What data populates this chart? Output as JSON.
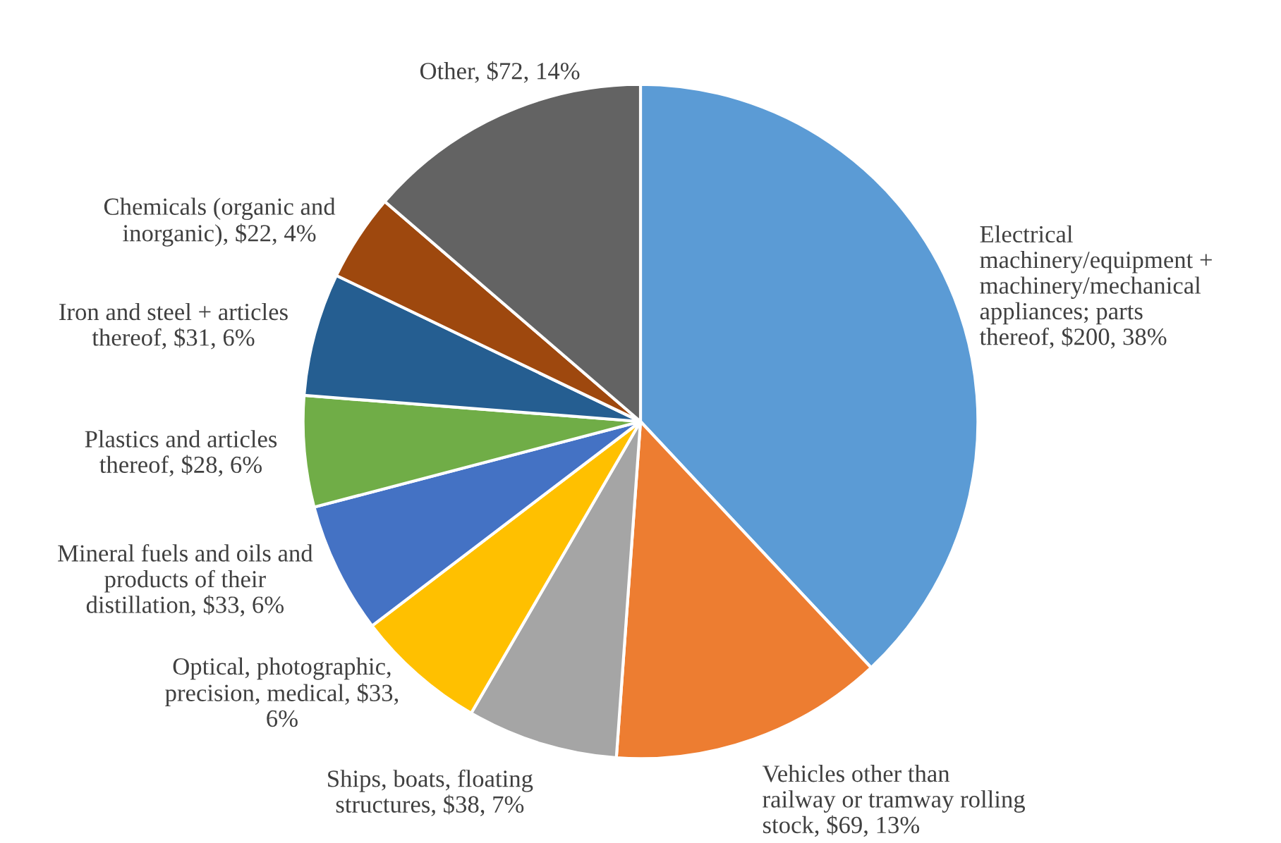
{
  "chart_data": {
    "type": "pie",
    "categories": [
      "Electrical machinery/equipment + machinery/mechanical appliances; parts thereof",
      "Vehicles other than railway or tramway rolling stock",
      "Ships, boats, floating structures",
      "Optical, photographic, precision, medical",
      "Mineral fuels and oils and products of their distillation",
      "Plastics and articles thereof",
      "Iron and steel + articles thereof",
      "Chemicals (organic and inorganic)",
      "Other"
    ],
    "values": [
      200,
      69,
      38,
      33,
      33,
      28,
      31,
      22,
      72
    ],
    "value_labels": [
      "$200, 38%",
      "$69, 13%",
      "$38, 7%",
      "$33, 6%",
      "$33, 6%",
      "$28, 6%",
      "$31, 6%",
      "$22, 4%",
      "$72, 14%"
    ],
    "colors": [
      "#5b9bd5",
      "#ed7d31",
      "#a5a5a5",
      "#ffc000",
      "#4472c4",
      "#70ad47",
      "#255e91",
      "#9e480e",
      "#636363"
    ]
  }
}
